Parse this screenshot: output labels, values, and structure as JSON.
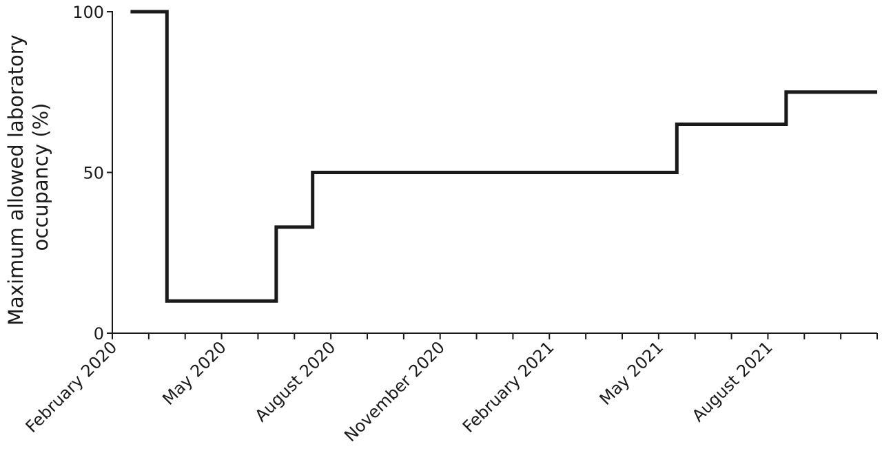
{
  "chart_data": {
    "type": "line",
    "ylabel": [
      "Maximum allowed laboratory",
      "occupancy (%)"
    ],
    "x": [
      0.5,
      1.5,
      1.5,
      4.5,
      4.5,
      5.5,
      5.5,
      15.5,
      15.5,
      18.5,
      18.5,
      21
    ],
    "series": [
      {
        "color": "#1a1a1a",
        "values": [
          100,
          100,
          10,
          10,
          33,
          33,
          50,
          50,
          65,
          65,
          75,
          75
        ]
      }
    ],
    "xlim": [
      0,
      21
    ],
    "xticks": [
      {
        "value": 0,
        "label": "February 2020"
      },
      {
        "value": 3,
        "label": "May 2020"
      },
      {
        "value": 6,
        "label": "August 2020"
      },
      {
        "value": 9,
        "label": "November 2020"
      },
      {
        "value": 12,
        "label": "February 2021"
      },
      {
        "value": 15,
        "label": "May 2021"
      },
      {
        "value": 18,
        "label": "August 2021"
      }
    ],
    "xminorticks": [
      1,
      2,
      4,
      5,
      7,
      8,
      10,
      11,
      13,
      14,
      16,
      17,
      19,
      20,
      21
    ],
    "ylim": [
      0,
      100
    ],
    "yticks": [
      0,
      50,
      100
    ],
    "grid": false
  }
}
